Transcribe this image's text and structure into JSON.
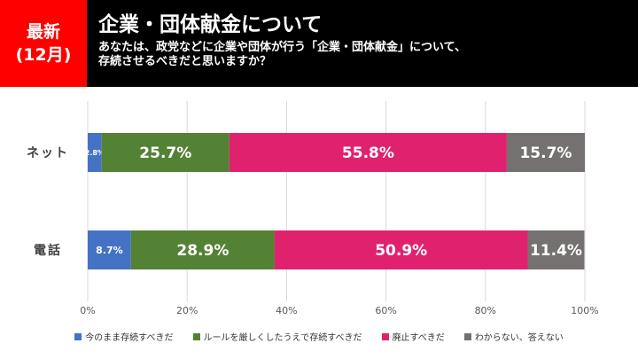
{
  "header": {
    "badge_line1": "最新",
    "badge_line2": "(12月)",
    "title": "企業・団体献金について",
    "subtitle_line1": "あなたは、政党などに企業や団体が行う「企業・団体献金」について、",
    "subtitle_line2": "存続させるべきだと思いますか？"
  },
  "chart_data": {
    "type": "bar",
    "orientation": "horizontal",
    "stacked": true,
    "categories": [
      "ネット",
      "電話"
    ],
    "series": [
      {
        "name": "今のまま存続すべきだ",
        "color": "#4472c4",
        "values": [
          2.8,
          8.7
        ],
        "labels": [
          "2.8%",
          "8.7%"
        ]
      },
      {
        "name": "ルールを厳しくしたうえで存続すべきだ",
        "color": "#548235",
        "values": [
          25.7,
          28.9
        ],
        "labels": [
          "25.7%",
          "28.9%"
        ]
      },
      {
        "name": "廃止すべきだ",
        "color": "#e0226e",
        "values": [
          55.8,
          50.9
        ],
        "labels": [
          "55.8%",
          "50.9%"
        ]
      },
      {
        "name": "わからない、答えない",
        "color": "#757171",
        "values": [
          15.7,
          11.4
        ],
        "labels": [
          "15.7%",
          "11.4%"
        ]
      }
    ],
    "xlim": [
      0,
      100
    ],
    "xticks": [
      "0%",
      "20%",
      "40%",
      "60%",
      "80%",
      "100%"
    ],
    "grid": true,
    "legend": "bottom"
  }
}
